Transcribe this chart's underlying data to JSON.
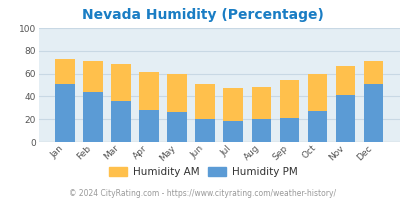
{
  "title": "Nevada Humidity (Percentage)",
  "months": [
    "Jan",
    "Feb",
    "Mar",
    "Apr",
    "May",
    "Jun",
    "Jul",
    "Aug",
    "Sep",
    "Oct",
    "Nov",
    "Dec"
  ],
  "humidity_pm": [
    51,
    44,
    36,
    28,
    26,
    20,
    18,
    20,
    21,
    27,
    41,
    51
  ],
  "humidity_am": [
    22,
    27,
    32,
    33,
    34,
    31,
    29,
    28,
    33,
    33,
    26,
    20
  ],
  "color_am": "#FFC04C",
  "color_pm": "#5B9BD5",
  "bg_color": "#E4EEF4",
  "fig_bg_color": "#FFFFFF",
  "title_color": "#1A7DC4",
  "legend_am_label": "Humidity AM",
  "legend_pm_label": "Humidity PM",
  "legend_text_color": "#333333",
  "footer": "© 2024 CityRating.com - https://www.cityrating.com/weather-history/",
  "footer_color": "#999999",
  "ylim": [
    0,
    100
  ],
  "yticks": [
    0,
    20,
    40,
    60,
    80,
    100
  ],
  "grid_color": "#C8D8E4",
  "title_fontsize": 10,
  "tick_fontsize": 6.5,
  "legend_fontsize": 7.5
}
